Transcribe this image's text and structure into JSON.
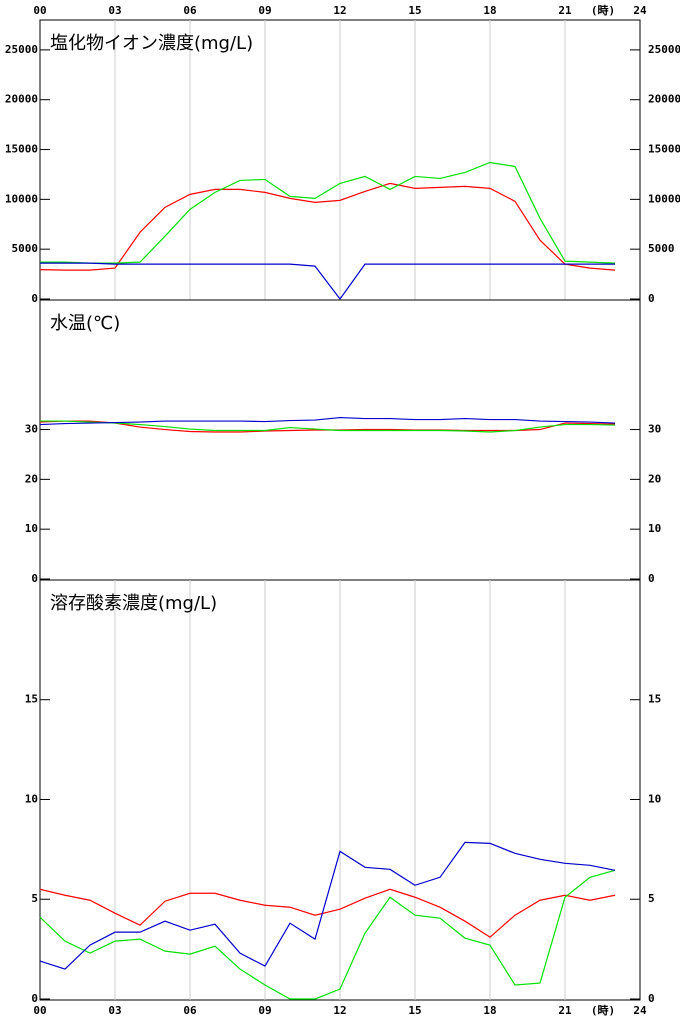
{
  "chart_data": [
    {
      "type": "line",
      "title": "塩化物イオン濃度(mg/L)",
      "xlabel": "(時)",
      "x": [
        0,
        1,
        2,
        3,
        4,
        5,
        6,
        7,
        8,
        9,
        10,
        11,
        12,
        13,
        14,
        15,
        16,
        17,
        18,
        19,
        20,
        21,
        22,
        23
      ],
      "xlim": [
        0,
        24
      ],
      "xticks": [
        {
          "value": 0,
          "label": "00"
        },
        {
          "value": 3,
          "label": "03"
        },
        {
          "value": 6,
          "label": "06"
        },
        {
          "value": 9,
          "label": "09"
        },
        12,
        15,
        18,
        21,
        24
      ],
      "ylim": [
        0,
        28000
      ],
      "yticks": [
        0,
        5000,
        10000,
        15000,
        20000,
        25000
      ],
      "grid": true,
      "series": [
        {
          "color": "#ff0000",
          "values": [
            2950,
            2900,
            2900,
            3100,
            6700,
            9200,
            10500,
            11000,
            11000,
            10700,
            10100,
            9700,
            9900,
            10800,
            11600,
            11100,
            11200,
            11300,
            11100,
            9800,
            5900,
            3500,
            3100,
            2900
          ]
        },
        {
          "color": "#00e000",
          "values": [
            3700,
            3700,
            3600,
            3600,
            3700,
            6300,
            9000,
            10700,
            11900,
            12000,
            10300,
            10100,
            11600,
            12300,
            11000,
            12300,
            12100,
            12700,
            13700,
            13300,
            8100,
            3800,
            3700,
            3600
          ]
        },
        {
          "color": "#0000cc",
          "values": [
            3600,
            3600,
            3600,
            3500,
            3500,
            3500,
            3500,
            3500,
            3500,
            3500,
            3500,
            3300,
            0,
            3500,
            3500,
            3500,
            3500,
            3500,
            3500,
            3500,
            3500,
            3500,
            3500,
            3500
          ]
        }
      ]
    },
    {
      "type": "line",
      "title": "水温(℃)",
      "x": [
        0,
        1,
        2,
        3,
        4,
        5,
        6,
        7,
        8,
        9,
        10,
        11,
        12,
        13,
        14,
        15,
        16,
        17,
        18,
        19,
        20,
        21,
        22,
        23
      ],
      "xlim": [
        0,
        24
      ],
      "ylim": [
        0,
        56
      ],
      "yticks": [
        0,
        10,
        20,
        30
      ],
      "grid": false,
      "series": [
        {
          "color": "#ff0000",
          "values": [
            31.5,
            31.7,
            31.7,
            31.3,
            30.5,
            30.0,
            29.6,
            29.5,
            29.5,
            29.7,
            29.8,
            29.9,
            29.9,
            30.0,
            30.0,
            29.9,
            29.9,
            29.8,
            29.8,
            29.8,
            30.0,
            31.3,
            31.2,
            31.1
          ]
        },
        {
          "color": "#00e000",
          "values": [
            31.7,
            31.7,
            31.5,
            31.3,
            31.0,
            30.6,
            30.1,
            29.8,
            29.8,
            29.8,
            30.4,
            30.1,
            29.8,
            29.8,
            29.8,
            29.8,
            29.8,
            29.7,
            29.5,
            29.8,
            30.5,
            31.0,
            31.0,
            30.9
          ]
        },
        {
          "color": "#0000cc",
          "values": [
            31.0,
            31.2,
            31.3,
            31.4,
            31.5,
            31.7,
            31.7,
            31.7,
            31.7,
            31.6,
            31.8,
            31.9,
            32.4,
            32.2,
            32.2,
            32.0,
            32.0,
            32.2,
            32.0,
            32.0,
            31.7,
            31.6,
            31.5,
            31.3
          ]
        }
      ]
    },
    {
      "type": "line",
      "title": "溶存酸素濃度(mg/L)",
      "xlabel": "(時)",
      "x": [
        0,
        1,
        2,
        3,
        4,
        5,
        6,
        7,
        8,
        9,
        10,
        11,
        12,
        13,
        14,
        15,
        16,
        17,
        18,
        19,
        20,
        21,
        22,
        23
      ],
      "xlim": [
        0,
        24
      ],
      "xticks": [
        {
          "value": 0,
          "label": "00"
        },
        {
          "value": 3,
          "label": "03"
        },
        {
          "value": 6,
          "label": "06"
        },
        {
          "value": 9,
          "label": "09"
        },
        12,
        15,
        18,
        21,
        24
      ],
      "ylim": [
        0,
        21
      ],
      "yticks": [
        0,
        5,
        10,
        15
      ],
      "grid": true,
      "series": [
        {
          "color": "#ff0000",
          "values": [
            5.5,
            5.2,
            4.95,
            4.3,
            3.7,
            4.9,
            5.3,
            5.3,
            4.95,
            4.7,
            4.6,
            4.2,
            4.5,
            5.05,
            5.5,
            5.1,
            4.6,
            3.9,
            3.1,
            4.2,
            4.95,
            5.2,
            4.95,
            5.2
          ]
        },
        {
          "color": "#00e000",
          "values": [
            4.1,
            2.9,
            2.3,
            2.9,
            3.0,
            2.4,
            2.25,
            2.65,
            1.5,
            0.7,
            0.0,
            0.0,
            0.5,
            3.3,
            5.1,
            4.2,
            4.05,
            3.05,
            2.7,
            0.7,
            0.8,
            5.1,
            6.1,
            6.45
          ]
        },
        {
          "color": "#0000cc",
          "values": [
            1.9,
            1.5,
            2.7,
            3.35,
            3.35,
            3.9,
            3.45,
            3.75,
            2.3,
            1.65,
            3.8,
            3.0,
            7.4,
            6.6,
            6.5,
            5.7,
            6.1,
            7.85,
            7.8,
            7.3,
            7.0,
            6.8,
            6.7,
            6.45
          ]
        }
      ]
    }
  ]
}
